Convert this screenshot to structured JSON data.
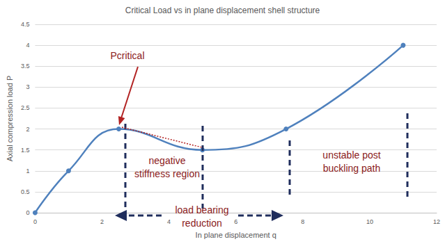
{
  "chart_data": {
    "type": "line",
    "title": "Critical Load vs in plane displacement shell structure",
    "x_label": "In plane displacement q",
    "y_label": "Axial compression load P",
    "x": [
      0,
      1,
      2.5,
      5,
      7.5,
      11
    ],
    "values": [
      0,
      1,
      2,
      1.5,
      2,
      4
    ],
    "color": "#4f81bd",
    "marker": "circle",
    "xlim": [
      0,
      12
    ],
    "xticks": [
      0,
      2,
      4,
      6,
      8,
      10,
      12
    ],
    "ylim": [
      0,
      4.5
    ],
    "yticks": [
      0,
      0.5,
      1,
      1.5,
      2,
      2.5,
      3,
      3.5,
      4,
      4.5
    ],
    "grid": true,
    "annotations": [
      "Pcritical",
      "negative\nstiffness region",
      "unstable post\nbuckling path",
      "load bearing\nreduction"
    ]
  }
}
